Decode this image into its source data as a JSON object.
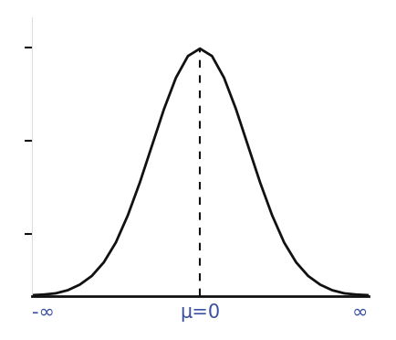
{
  "chart_data": {
    "type": "line",
    "x": [
      -3.5,
      -3.25,
      -3.0,
      -2.75,
      -2.5,
      -2.25,
      -2.0,
      -1.75,
      -1.5,
      -1.25,
      -1.0,
      -0.75,
      -0.5,
      -0.25,
      0.0,
      0.25,
      0.5,
      0.75,
      1.0,
      1.25,
      1.5,
      1.75,
      2.0,
      2.25,
      2.5,
      2.75,
      3.0,
      3.25,
      3.5
    ],
    "values": [
      0.001,
      0.002,
      0.004,
      0.009,
      0.018,
      0.032,
      0.054,
      0.086,
      0.13,
      0.183,
      0.242,
      0.301,
      0.352,
      0.387,
      0.399,
      0.387,
      0.352,
      0.301,
      0.242,
      0.183,
      0.13,
      0.086,
      0.054,
      0.032,
      0.018,
      0.009,
      0.004,
      0.002,
      0.001
    ],
    "color": "#111111",
    "xlim": [
      -3.5,
      3.5
    ],
    "xticks": [
      {
        "value": -3.5,
        "label": "-∞"
      },
      {
        "value": 0,
        "label": "μ=0"
      },
      {
        "value": 3.5,
        "label": "∞"
      }
    ],
    "ylim": [
      0,
      0.45
    ],
    "yticks": [
      0.1,
      0.25,
      0.4
    ],
    "tick_labels": "x",
    "grid": false
  }
}
